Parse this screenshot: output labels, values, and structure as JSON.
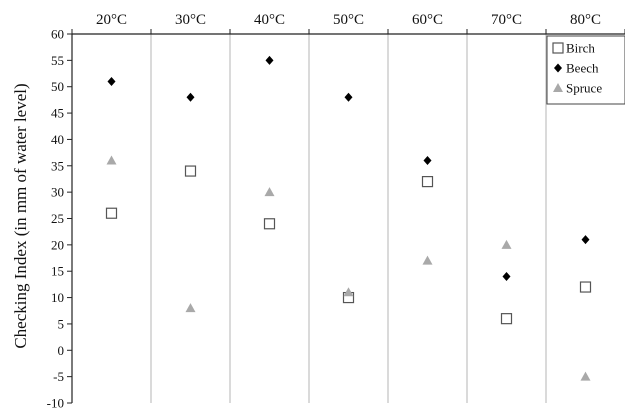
{
  "chart_data": {
    "type": "scatter",
    "categories": [
      "20°C",
      "30°C",
      "40°C",
      "50°C",
      "60°C",
      "70°C",
      "80°C"
    ],
    "ylabel": "Checking Index (in mm of water level)",
    "ylim": [
      -10,
      60
    ],
    "yticks": [
      -10,
      -5,
      0,
      5,
      10,
      15,
      20,
      25,
      30,
      35,
      40,
      45,
      50,
      55,
      60
    ],
    "legend_position": "top-right",
    "series": [
      {
        "name": "Birch",
        "marker": "open-square",
        "color": "#555555",
        "values": [
          26,
          34,
          24,
          10,
          32,
          6,
          12
        ]
      },
      {
        "name": "Beech",
        "marker": "filled-diamond",
        "color": "#000000",
        "values": [
          51,
          48,
          55,
          48,
          36,
          14,
          21
        ]
      },
      {
        "name": "Spruce",
        "marker": "filled-triangle",
        "color": "#a9a9a9",
        "values": [
          36,
          8,
          30,
          11,
          17,
          20,
          -5
        ]
      }
    ]
  }
}
